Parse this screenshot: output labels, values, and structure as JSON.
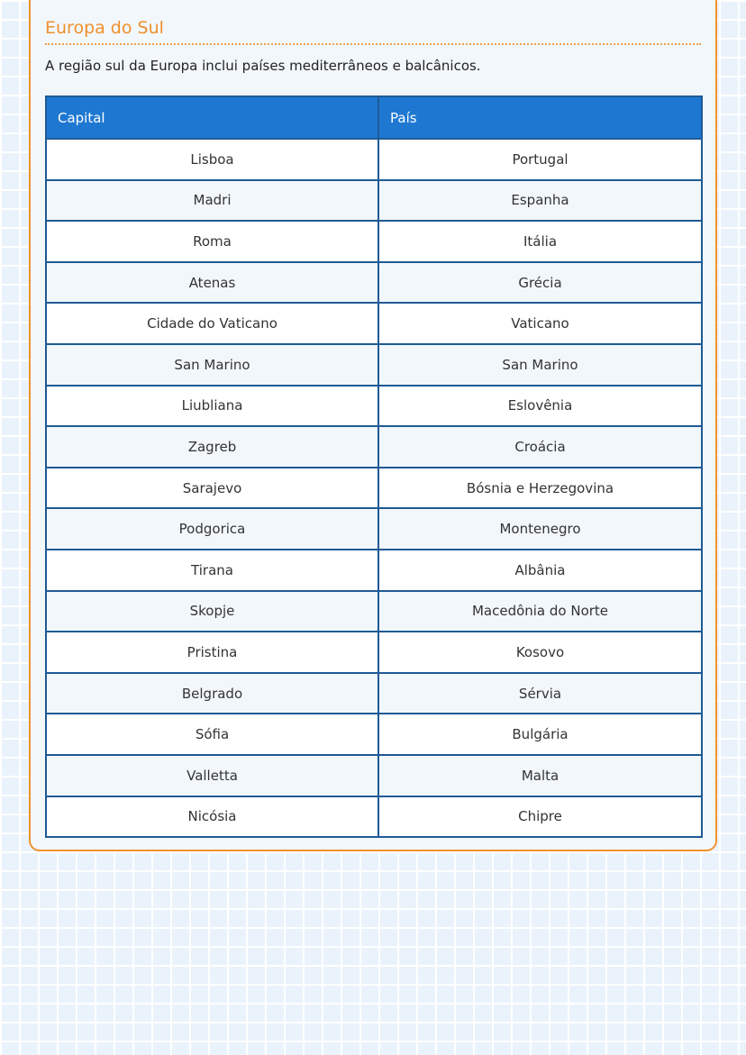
{
  "section": {
    "title": "Europa do Sul",
    "description": "A região sul da Europa inclui países mediterrâneos e balcânicos."
  },
  "table": {
    "headers": [
      "Capital",
      "País"
    ],
    "rows": [
      [
        "Lisboa",
        "Portugal"
      ],
      [
        "Madri",
        "Espanha"
      ],
      [
        "Roma",
        "Itália"
      ],
      [
        "Atenas",
        "Grécia"
      ],
      [
        "Cidade do Vaticano",
        "Vaticano"
      ],
      [
        "San Marino",
        "San Marino"
      ],
      [
        "Liubliana",
        "Eslovênia"
      ],
      [
        "Zagreb",
        "Croácia"
      ],
      [
        "Sarajevo",
        "Bósnia e Herzegovina"
      ],
      [
        "Podgorica",
        "Montenegro"
      ],
      [
        "Tirana",
        "Albânia"
      ],
      [
        "Skopje",
        "Macedônia do Norte"
      ],
      [
        "Pristina",
        "Kosovo"
      ],
      [
        "Belgrado",
        "Sérvia"
      ],
      [
        "Sófia",
        "Bulgária"
      ],
      [
        "Valletta",
        "Malta"
      ],
      [
        "Nicósia",
        "Chipre"
      ]
    ]
  },
  "colors": {
    "accent": "#f0922e",
    "header": "#1e78d2",
    "border": "#1f5a94"
  }
}
